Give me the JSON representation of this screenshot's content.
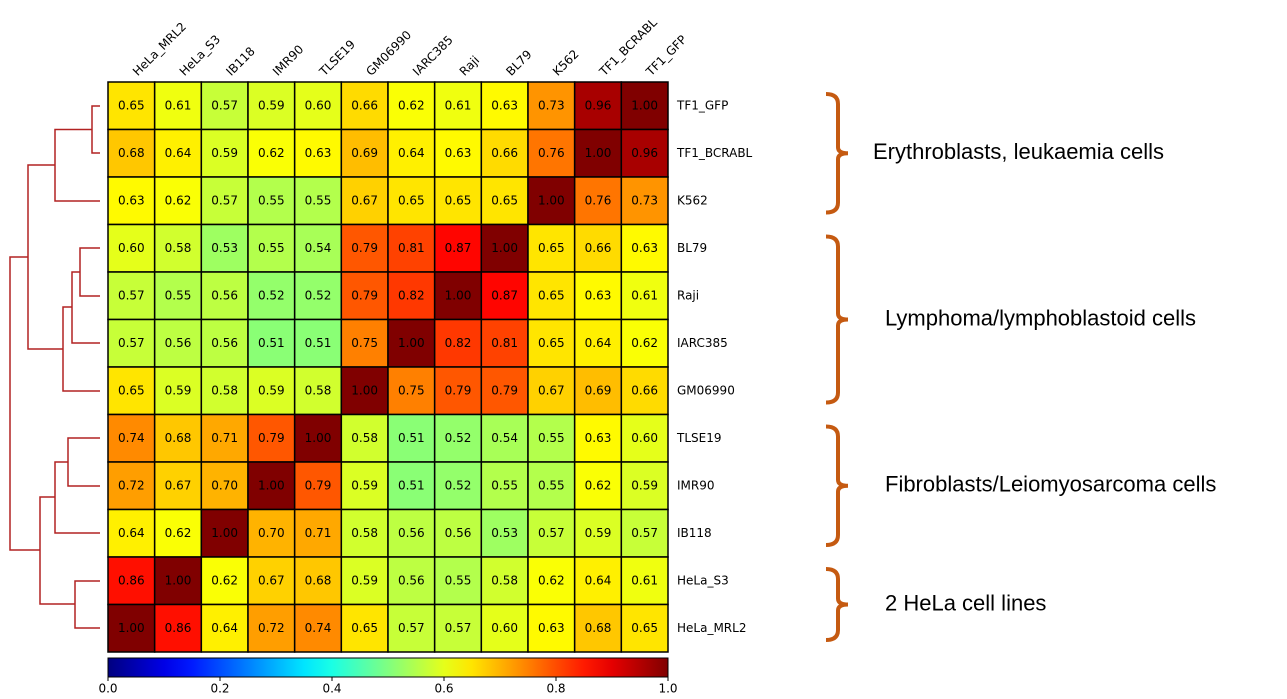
{
  "chart_data": {
    "type": "heatmap",
    "colormap": "jet",
    "x_categories": [
      "HeLa_MRL2",
      "HeLa_S3",
      "IB118",
      "IMR90",
      "TLSE19",
      "GM06990",
      "IARC385",
      "Raji",
      "BL79",
      "K562",
      "TF1_BCRABL",
      "TF1_GFP"
    ],
    "y_categories": [
      "TF1_GFP",
      "TF1_BCRABL",
      "K562",
      "BL79",
      "Raji",
      "IARC385",
      "GM06990",
      "TLSE19",
      "IMR90",
      "IB118",
      "HeLa_S3",
      "HeLa_MRL2"
    ],
    "values": [
      [
        0.65,
        0.61,
        0.57,
        0.59,
        0.6,
        0.66,
        0.62,
        0.61,
        0.63,
        0.73,
        0.96,
        1.0
      ],
      [
        0.68,
        0.64,
        0.59,
        0.62,
        0.63,
        0.69,
        0.64,
        0.63,
        0.66,
        0.76,
        1.0,
        0.96
      ],
      [
        0.63,
        0.62,
        0.57,
        0.55,
        0.55,
        0.67,
        0.65,
        0.65,
        0.65,
        1.0,
        0.76,
        0.73
      ],
      [
        0.6,
        0.58,
        0.53,
        0.55,
        0.54,
        0.79,
        0.81,
        0.87,
        1.0,
        0.65,
        0.66,
        0.63
      ],
      [
        0.57,
        0.55,
        0.56,
        0.52,
        0.52,
        0.79,
        0.82,
        1.0,
        0.87,
        0.65,
        0.63,
        0.61
      ],
      [
        0.57,
        0.56,
        0.56,
        0.51,
        0.51,
        0.75,
        1.0,
        0.82,
        0.81,
        0.65,
        0.64,
        0.62
      ],
      [
        0.65,
        0.59,
        0.58,
        0.59,
        0.58,
        1.0,
        0.75,
        0.79,
        0.79,
        0.67,
        0.69,
        0.66
      ],
      [
        0.74,
        0.68,
        0.71,
        0.79,
        1.0,
        0.58,
        0.51,
        0.52,
        0.54,
        0.55,
        0.63,
        0.6
      ],
      [
        0.72,
        0.67,
        0.7,
        1.0,
        0.79,
        0.59,
        0.51,
        0.52,
        0.55,
        0.55,
        0.62,
        0.59
      ],
      [
        0.64,
        0.62,
        1.0,
        0.7,
        0.71,
        0.58,
        0.56,
        0.56,
        0.53,
        0.57,
        0.59,
        0.57
      ],
      [
        0.86,
        1.0,
        0.62,
        0.67,
        0.68,
        0.59,
        0.56,
        0.55,
        0.58,
        0.62,
        0.64,
        0.61
      ],
      [
        1.0,
        0.86,
        0.64,
        0.72,
        0.74,
        0.65,
        0.57,
        0.57,
        0.6,
        0.63,
        0.68,
        0.65
      ]
    ],
    "value_labels": [
      [
        "0.65",
        "0.61",
        "0.57",
        "0.59",
        "0.60",
        "0.66",
        "0.62",
        "0.61",
        "0.63",
        "0.73",
        "0.96",
        "1.00"
      ],
      [
        "0.68",
        "0.64",
        "0.59",
        "0.62",
        "0.63",
        "0.69",
        "0.64",
        "0.63",
        "0.66",
        "0.76",
        "1.00",
        "0.96"
      ],
      [
        "0.63",
        "0.62",
        "0.57",
        "0.55",
        "0.55",
        "0.67",
        "0.65",
        "0.65",
        "0.65",
        "1.00",
        "0.76",
        "0.73"
      ],
      [
        "0.60",
        "0.58",
        "0.53",
        "0.55",
        "0.54",
        "0.79",
        "0.81",
        "0.87",
        "1.00",
        "0.65",
        "0.66",
        "0.63"
      ],
      [
        "0.57",
        "0.55",
        "0.56",
        "0.52",
        "0.52",
        "0.79",
        "0.82",
        "1.00",
        "0.87",
        "0.65",
        "0.63",
        "0.61"
      ],
      [
        "0.57",
        "0.56",
        "0.56",
        "0.51",
        "0.51",
        "0.75",
        "1.00",
        "0.82",
        "0.81",
        "0.65",
        "0.64",
        "0.62"
      ],
      [
        "0.65",
        "0.59",
        "0.58",
        "0.59",
        "0.58",
        "1.00",
        "0.75",
        "0.79",
        "0.79",
        "0.67",
        "0.69",
        "0.66"
      ],
      [
        "0.74",
        "0.68",
        "0.71",
        "0.79",
        "1.00",
        "0.58",
        "0.51",
        "0.52",
        "0.54",
        "0.55",
        "0.63",
        "0.60"
      ],
      [
        "0.72",
        "0.67",
        "0.70",
        "1.00",
        "0.79",
        "0.59",
        "0.51",
        "0.52",
        "0.55",
        "0.55",
        "0.62",
        "0.59"
      ],
      [
        "0.64",
        "0.62",
        "1.00",
        "0.70",
        "0.71",
        "0.58",
        "0.56",
        "0.56",
        "0.53",
        "0.57",
        "0.59",
        "0.57"
      ],
      [
        "0.86",
        "1.00",
        "0.62",
        "0.67",
        "0.68",
        "0.59",
        "0.56",
        "0.55",
        "0.58",
        "0.62",
        "0.64",
        "0.61"
      ],
      [
        "1.00",
        "0.86",
        "0.64",
        "0.72",
        "0.74",
        "0.65",
        "0.57",
        "0.57",
        "0.60",
        "0.63",
        "0.68",
        "0.65"
      ]
    ],
    "clim": [
      0,
      1
    ],
    "cticks": [
      {
        "value": 0,
        "label": "0.0"
      },
      0.2,
      0.4,
      0.6,
      0.8,
      {
        "value": 1,
        "label": "1.0"
      }
    ],
    "annotations": [
      "Erythroblasts, leukaemia cells",
      "Lymphoma/lymphoblastoid cells",
      "Fibroblasts/Leiomyosarcoma cells",
      "2 HeLa cell lines"
    ]
  }
}
